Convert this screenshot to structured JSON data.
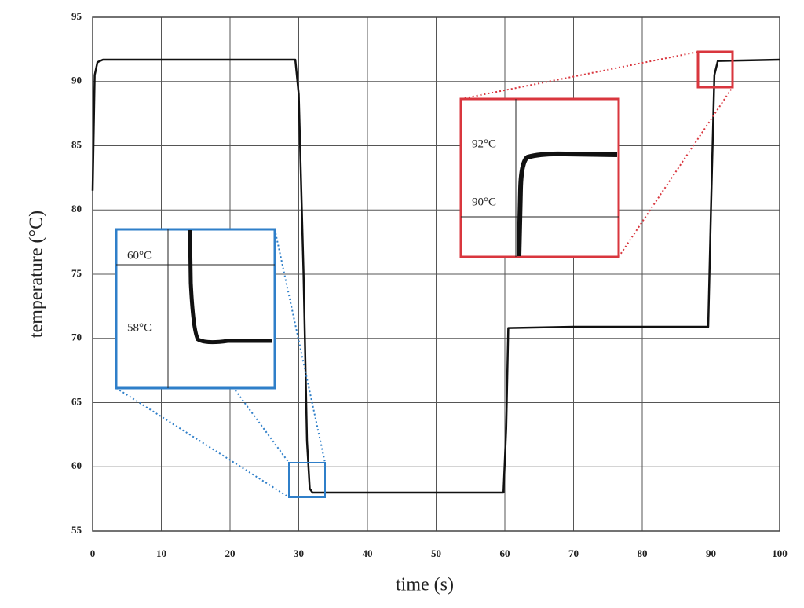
{
  "chart_data": {
    "type": "line",
    "x_label": "time (s)",
    "y_label": "temperature (°C)",
    "x": [
      0,
      0.3,
      0.7,
      1.5,
      10,
      20,
      29.5,
      30,
      30.7,
      31.2,
      31.6,
      32,
      40,
      50,
      59.8,
      60.2,
      60.5,
      70,
      80,
      89.6,
      90,
      90.5,
      91,
      100
    ],
    "series": [
      {
        "color": "#111111",
        "values": [
          81.5,
          90.5,
          91.5,
          91.7,
          91.7,
          91.7,
          91.7,
          89,
          75,
          62,
          58.3,
          58,
          58,
          58,
          58,
          63,
          70.8,
          70.9,
          70.9,
          70.9,
          80,
          90.5,
          91.6,
          91.7
        ]
      }
    ],
    "xlim": [
      0,
      100
    ],
    "xticks": [
      0,
      10,
      20,
      30,
      40,
      50,
      60,
      70,
      80,
      90,
      100
    ],
    "ylim": [
      55,
      95
    ],
    "yticks": [
      55,
      60,
      65,
      70,
      75,
      80,
      85,
      90,
      95
    ],
    "grid": true,
    "annotations": [
      "60°C",
      "58°C",
      "92°C",
      "90°C"
    ]
  }
}
